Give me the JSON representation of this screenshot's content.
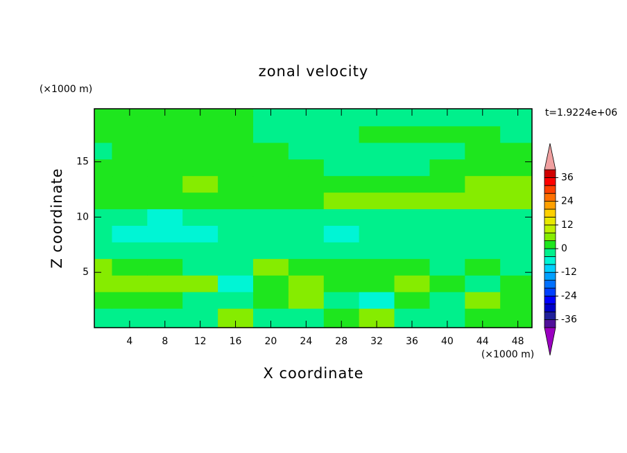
{
  "chart_data": {
    "type": "contour",
    "title": "zonal velocity",
    "xlabel": "X coordinate",
    "ylabel": "Z coordinate",
    "x_unit": "(×1000 m)",
    "y_unit": "(×1000 m)",
    "time_label": "t=1.9224e+06",
    "x": [
      0,
      4,
      8,
      12,
      16,
      20,
      24,
      28,
      32,
      36,
      40,
      44,
      48
    ],
    "z": [
      1,
      2.5,
      4,
      5.5,
      7,
      8.5,
      10,
      11.5,
      13,
      14.5,
      16,
      17.5,
      19
    ],
    "values": [
      [
        -2,
        -2,
        -2,
        -2,
        6,
        -2,
        -2,
        2,
        6,
        -2,
        -2,
        2,
        2
      ],
      [
        2,
        2,
        2,
        -2,
        -2,
        2,
        6,
        -2,
        -6,
        2,
        -2,
        6,
        2
      ],
      [
        6,
        6,
        6,
        6,
        -6,
        2,
        6,
        2,
        2,
        6,
        2,
        -2,
        2
      ],
      [
        6,
        2,
        2,
        -2,
        -2,
        6,
        2,
        2,
        2,
        2,
        -2,
        2,
        -2
      ],
      [
        -2,
        -2,
        -2,
        -2,
        -2,
        -2,
        -2,
        -2,
        -2,
        -2,
        -2,
        -2,
        -2
      ],
      [
        -2,
        -6,
        -6,
        -6,
        -2,
        -2,
        -2,
        -6,
        -2,
        -2,
        -2,
        -2,
        -2
      ],
      [
        -2,
        -2,
        -6,
        -2,
        -2,
        -2,
        -2,
        -2,
        -2,
        -2,
        -2,
        -2,
        -2
      ],
      [
        2,
        2,
        2,
        2,
        2,
        2,
        2,
        6,
        6,
        6,
        6,
        6,
        6
      ],
      [
        2,
        2,
        2,
        6,
        2,
        2,
        2,
        2,
        2,
        2,
        2,
        6,
        6
      ],
      [
        2,
        2,
        2,
        2,
        2,
        2,
        2,
        -2,
        -2,
        -2,
        2,
        2,
        2
      ],
      [
        -2,
        2,
        2,
        2,
        2,
        2,
        -2,
        -2,
        -2,
        -2,
        -2,
        2,
        2
      ],
      [
        2,
        2,
        2,
        2,
        2,
        -2,
        -2,
        -2,
        2,
        2,
        2,
        2,
        -2
      ],
      [
        2,
        2,
        2,
        2,
        2,
        -2,
        -2,
        -2,
        -2,
        -2,
        -2,
        -2,
        -2
      ]
    ],
    "xlim": [
      0,
      49.6
    ],
    "ylim": [
      0,
      19.8
    ],
    "xticks": [
      4,
      8,
      12,
      16,
      20,
      24,
      28,
      32,
      36,
      40,
      44,
      48
    ],
    "yticks": [
      5,
      10,
      15
    ],
    "levels": [
      -40,
      -36,
      -32,
      -28,
      -24,
      -20,
      -16,
      -12,
      -8,
      -4,
      0,
      4,
      8,
      12,
      16,
      20,
      24,
      28,
      32,
      36,
      40
    ],
    "colors": [
      "#50109a",
      "#20209a",
      "#0000c8",
      "#0000ff",
      "#0040ff",
      "#0070ff",
      "#00a0ff",
      "#00d0ff",
      "#00f5d5",
      "#00f08c",
      "#1ee61e",
      "#86ec00",
      "#c0f000",
      "#e8e800",
      "#ffd000",
      "#ffa000",
      "#ff7000",
      "#ff4000",
      "#ff0000",
      "#d00000"
    ],
    "under_color": "#9a00c0",
    "over_color": "#f0a0a0",
    "colorbar_ticks": [
      -36,
      -24,
      -12,
      0,
      12,
      24,
      36
    ]
  }
}
